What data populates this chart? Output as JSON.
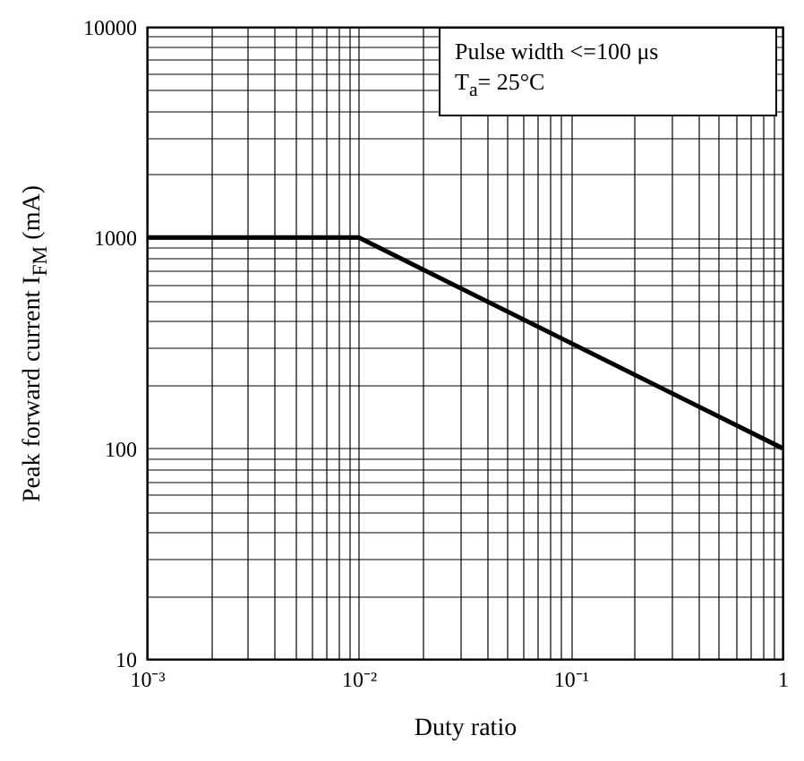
{
  "chart_data": {
    "type": "line",
    "xlabel": "Duty ratio",
    "ylabel": "Peak forward current I$_{FM}$ (mA)",
    "x": [
      0.001,
      0.01,
      1
    ],
    "series": [
      {
        "color": "#000000",
        "values": [
          1000,
          1000,
          100
        ]
      }
    ],
    "log": "xy",
    "grid": true,
    "xlim": [
      0.001,
      1
    ],
    "ylim": [
      10,
      10000
    ],
    "xticks": [
      {
        "value": 0.001,
        "label": "10⁻³"
      },
      {
        "value": 0.002,
        "label": null
      },
      {
        "value": 0.003,
        "label": null
      },
      {
        "value": 0.004,
        "label": null
      },
      {
        "value": 0.005,
        "label": null
      },
      {
        "value": 0.006,
        "label": null
      },
      {
        "value": 0.007,
        "label": null
      },
      {
        "value": 0.008,
        "label": null
      },
      {
        "value": 0.009,
        "label": null
      },
      {
        "value": 0.01,
        "label": "10⁻²"
      },
      {
        "value": 0.02,
        "label": null
      },
      {
        "value": 0.03,
        "label": null
      },
      {
        "value": 0.04,
        "label": null
      },
      {
        "value": 0.05,
        "label": null
      },
      {
        "value": 0.06,
        "label": null
      },
      {
        "value": 0.07,
        "label": null
      },
      {
        "value": 0.08,
        "label": null
      },
      {
        "value": 0.09,
        "label": null
      },
      {
        "value": 0.1,
        "label": "10⁻¹"
      },
      {
        "value": 0.2,
        "label": null
      },
      {
        "value": 0.3,
        "label": null
      },
      {
        "value": 0.4,
        "label": null
      },
      {
        "value": 0.5,
        "label": null
      },
      {
        "value": 0.6,
        "label": null
      },
      {
        "value": 0.7,
        "label": null
      },
      {
        "value": 0.8,
        "label": null
      },
      {
        "value": 0.9,
        "label": null
      },
      1
    ],
    "yticks": [
      10,
      {
        "value": 20,
        "label": null
      },
      {
        "value": 30,
        "label": null
      },
      {
        "value": 40,
        "label": null
      },
      {
        "value": 50,
        "label": null
      },
      {
        "value": 60,
        "label": null
      },
      {
        "value": 70,
        "label": null
      },
      {
        "value": 80,
        "label": null
      },
      {
        "value": 90,
        "label": null
      },
      100,
      {
        "value": 200,
        "label": null
      },
      {
        "value": 300,
        "label": null
      },
      {
        "value": 400,
        "label": null
      },
      {
        "value": 500,
        "label": null
      },
      {
        "value": 600,
        "label": null
      },
      {
        "value": 700,
        "label": null
      },
      {
        "value": 800,
        "label": null
      },
      {
        "value": 900,
        "label": null
      },
      1000,
      {
        "value": 2000,
        "label": null
      },
      {
        "value": 3000,
        "label": null
      },
      {
        "value": 4000,
        "label": null
      },
      {
        "value": 5000,
        "label": null
      },
      {
        "value": 6000,
        "label": null
      },
      {
        "value": 7000,
        "label": null
      },
      {
        "value": 8000,
        "label": null
      },
      {
        "value": 9000,
        "label": null
      },
      10000
    ],
    "annotations": [
      "Pulse width <=100 μs",
      "T$_{a}$= 25°C"
    ]
  }
}
